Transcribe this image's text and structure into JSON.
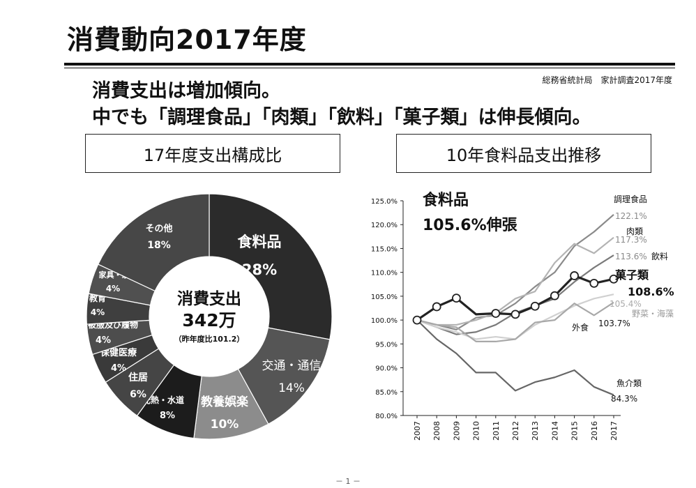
{
  "page": {
    "title": "消費動向2017年度",
    "source": "総務省統計局　家計調査2017年度",
    "headline_1": "消費支出は増加傾向。",
    "headline_2": "中でも「調理食品」「肉類」「飲料」「菓子類」は伸長傾向。",
    "page_number": "－ 1 －"
  },
  "chart_data": [
    {
      "type": "pie",
      "title": "17年度支出構成比",
      "center_label": "消費支出",
      "center_value": "342万",
      "center_note": "（昨年度比101.2）",
      "slices": [
        {
          "label": "食料品",
          "value": 28,
          "value_label": "28%",
          "color": "#2b2b2b"
        },
        {
          "label": "交通・通信",
          "value": 14,
          "value_label": "14%",
          "color": "#555555"
        },
        {
          "label": "教養娯楽",
          "value": 10,
          "value_label": "10%",
          "color": "#8c8c8c"
        },
        {
          "label": "光熱・水道",
          "value": 8,
          "value_label": "8%",
          "color": "#1c1c1c"
        },
        {
          "label": "住居",
          "value": 6,
          "value_label": "6%",
          "color": "#454545"
        },
        {
          "label": "保健医療",
          "value": 4,
          "value_label": "4%",
          "color": "#3a3a3a"
        },
        {
          "label": "被服及び履物",
          "value": 4,
          "value_label": "4%",
          "color": "#4d4d4d"
        },
        {
          "label": "教育",
          "value": 4,
          "value_label": "4%",
          "color": "#3f3f3f"
        },
        {
          "label": "家具・家事用品",
          "value": 4,
          "value_label": "4%",
          "color": "#505050"
        },
        {
          "label": "その他",
          "value": 18,
          "value_label": "18%",
          "color": "#474747"
        }
      ]
    },
    {
      "type": "line",
      "title": "10年食料品支出推移",
      "annotation_title": "食料品",
      "annotation_value": "105.6%伸張",
      "x": [
        "2007",
        "2008",
        "2009",
        "2010",
        "2011",
        "2012",
        "2013",
        "2014",
        "2015",
        "2016",
        "2017"
      ],
      "ylim": [
        80,
        125
      ],
      "yticks": [
        80,
        85,
        90,
        95,
        100,
        105,
        110,
        115,
        120,
        125
      ],
      "ytick_labels": [
        "80.0%",
        "85.0%",
        "90.0%",
        "95.0%",
        "100.0%",
        "105.0%",
        "110.0%",
        "115.0%",
        "120.0%",
        "125.0%"
      ],
      "series": [
        {
          "name": "調理食品",
          "end_label": "122.1%",
          "color": "#8a8a8a",
          "values": [
            100,
            99.0,
            98.0,
            100.5,
            101.0,
            103.5,
            107.0,
            110.0,
            115.5,
            118.5,
            122.1
          ]
        },
        {
          "name": "肉類",
          "end_label": "117.3%",
          "color": "#b3b3b3",
          "values": [
            100,
            99.0,
            99.0,
            100.0,
            101.5,
            104.5,
            106.0,
            112.0,
            116.0,
            114.0,
            117.3
          ]
        },
        {
          "name": "飲料",
          "end_label": "113.6%",
          "color": "#7a7a7a",
          "values": [
            100,
            98.5,
            97.0,
            97.5,
            99.0,
            101.5,
            103.0,
            104.5,
            108.0,
            111.0,
            113.6
          ]
        },
        {
          "name": "菓子類",
          "end_label": "108.6%",
          "color": "#222222",
          "values": [
            100,
            102.8,
            104.6,
            101.2,
            101.4,
            101.2,
            102.9,
            105.1,
            109.3,
            107.7,
            108.6
          ]
        },
        {
          "name": "野菜・海藻",
          "end_label": "105.4%",
          "color": "#d0d0d0",
          "values": [
            100,
            98.5,
            97.5,
            96.0,
            96.5,
            96.0,
            99.0,
            101.0,
            103.0,
            104.5,
            105.4
          ]
        },
        {
          "name": "外食",
          "end_label": "103.7%",
          "color": "#a8a8a8",
          "values": [
            100,
            99.0,
            98.5,
            95.5,
            95.5,
            96.0,
            99.5,
            100.0,
            103.5,
            101.0,
            103.7
          ]
        },
        {
          "name": "魚介類",
          "end_label": "84.3%",
          "color": "#666666",
          "values": [
            100,
            96.0,
            93.0,
            89.0,
            89.0,
            85.2,
            87.0,
            88.0,
            89.5,
            86.0,
            84.3
          ]
        }
      ]
    }
  ]
}
